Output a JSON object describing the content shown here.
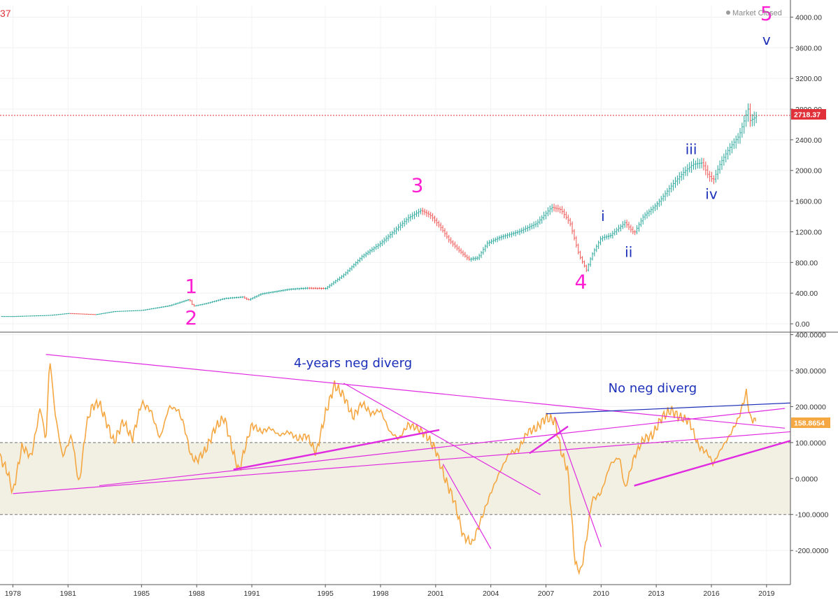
{
  "header": {
    "last_price_partial": "37",
    "status_label": "Market Closed"
  },
  "colors": {
    "up": "#26a69a",
    "down": "#ef5350",
    "oscillator": "#f5a742",
    "trendline_pink": "#e02be0",
    "trendline_blue": "#1c2fb8",
    "band_fill": "#f1f0e3",
    "price_line": "#e0303a",
    "label_pink": "#ff1fd2",
    "label_blue": "#1c2fb8"
  },
  "chart_data": [
    {
      "type": "line",
      "panel": "price",
      "y_scale": "linear",
      "ylim": [
        -100,
        4150
      ],
      "xlim": [
        1977.3,
        2020.3
      ],
      "yticks": [
        "4000.00",
        "3600.00",
        "3200.00",
        "2800.00",
        "2400.00",
        "2000.00",
        "1600.00",
        "1200.00",
        "800.00",
        "400.00",
        "0.00"
      ],
      "last_price": "2718.37",
      "series": [
        {
          "x": [
            1977.3,
            1978.0,
            1980.0,
            1981.0,
            1982.5,
            1983.5,
            1985.0,
            1986.5,
            1987.6,
            1987.8,
            1988.5,
            1989.5,
            1990.5,
            1990.8,
            1991.5,
            1993.0,
            1994.0,
            1995.0,
            1996.0,
            1997.0,
            1998.0,
            1998.7,
            1999.5,
            2000.2,
            2000.7,
            2001.3,
            2001.7,
            2002.3,
            2002.8,
            2003.3,
            2003.8,
            2004.5,
            2005.5,
            2006.5,
            2007.3,
            2007.8,
            2008.3,
            2008.8,
            2009.2,
            2009.5,
            2010.0,
            2010.5,
            2011.3,
            2011.8,
            2012.3,
            2013.0,
            2013.5,
            2014.0,
            2014.5,
            2015.0,
            2015.5,
            2015.8,
            2016.1,
            2016.5,
            2017.0,
            2017.5,
            2018.0,
            2018.1,
            2018.3,
            2018.5
          ],
          "values": [
            95,
            95,
            110,
            135,
            120,
            160,
            175,
            235,
            320,
            230,
            265,
            330,
            350,
            310,
            390,
            450,
            465,
            460,
            640,
            880,
            1050,
            1200,
            1380,
            1480,
            1420,
            1250,
            1100,
            950,
            840,
            860,
            1050,
            1130,
            1200,
            1310,
            1520,
            1490,
            1320,
            900,
            700,
            900,
            1120,
            1150,
            1320,
            1180,
            1400,
            1550,
            1700,
            1850,
            1980,
            2080,
            2100,
            1950,
            1870,
            2100,
            2300,
            2450,
            2800,
            2650,
            2680,
            2718
          ]
        }
      ],
      "wave_labels": [
        {
          "text": "1",
          "x": 1987.7,
          "y": 400,
          "color": "pink"
        },
        {
          "text": "2",
          "x": 1987.7,
          "y": -10,
          "color": "pink"
        },
        {
          "text": "3",
          "x": 2000.0,
          "y": 1720,
          "color": "pink"
        },
        {
          "text": "4",
          "x": 2008.9,
          "y": 460,
          "color": "pink"
        },
        {
          "text": "5",
          "x": 2019.0,
          "y": 3960,
          "color": "pink"
        },
        {
          "text": "v",
          "x": 2019.0,
          "y": 3640,
          "color": "blue"
        },
        {
          "text": "i",
          "x": 2010.1,
          "y": 1340,
          "color": "blue"
        },
        {
          "text": "ii",
          "x": 2011.5,
          "y": 870,
          "color": "blue"
        },
        {
          "text": "iii",
          "x": 2014.9,
          "y": 2210,
          "color": "blue"
        },
        {
          "text": "iv",
          "x": 2016.0,
          "y": 1630,
          "color": "blue"
        }
      ]
    },
    {
      "type": "line",
      "panel": "oscillator",
      "ylim": [
        -295,
        405
      ],
      "yticks": [
        "400.0000",
        "300.0000",
        "200.0000",
        "100.0000",
        "0.0000",
        "-100.0000",
        "-200.0000"
      ],
      "band": [
        -100,
        100
      ],
      "last_value": "158.8654",
      "xtick_labels": [
        "1978",
        "1981",
        "1985",
        "1988",
        "1991",
        "1995",
        "1998",
        "2001",
        "2004",
        "2007",
        "2010",
        "2013",
        "2016",
        "2019"
      ],
      "series": [
        {
          "x": [
            1977.3,
            1977.7,
            1978.0,
            1978.5,
            1979.0,
            1979.5,
            1979.8,
            1980.0,
            1980.3,
            1980.7,
            1981.2,
            1981.6,
            1982.0,
            1982.3,
            1982.7,
            1983.0,
            1983.5,
            1984.0,
            1984.5,
            1985.0,
            1985.5,
            1986.0,
            1986.5,
            1987.0,
            1987.3,
            1987.7,
            1988.0,
            1988.5,
            1989.0,
            1989.5,
            1990.0,
            1990.3,
            1990.6,
            1991.0,
            1991.5,
            1992.0,
            1992.5,
            1993.0,
            1993.5,
            1994.0,
            1994.5,
            1995.0,
            1995.5,
            1996.0,
            1996.5,
            1997.0,
            1997.5,
            1998.0,
            1998.5,
            1999.0,
            1999.5,
            2000.0,
            2000.5,
            2001.0,
            2001.5,
            2002.0,
            2002.5,
            2003.0,
            2003.5,
            2004.0,
            2004.5,
            2005.0,
            2005.5,
            2006.0,
            2006.5,
            2007.0,
            2007.5,
            2007.8,
            2008.2,
            2008.6,
            2008.9,
            2009.2,
            2009.5,
            2010.0,
            2010.5,
            2011.0,
            2011.3,
            2011.8,
            2012.3,
            2012.8,
            2013.3,
            2013.8,
            2014.3,
            2014.8,
            2015.3,
            2015.8,
            2016.1,
            2016.5,
            2017.0,
            2017.5,
            2017.9,
            2018.1,
            2018.4
          ],
          "values": [
            60,
            20,
            -40,
            90,
            60,
            200,
            100,
            340,
            180,
            60,
            120,
            -20,
            150,
            200,
            210,
            170,
            100,
            160,
            110,
            210,
            190,
            110,
            200,
            190,
            150,
            60,
            50,
            80,
            140,
            170,
            70,
            20,
            80,
            150,
            130,
            140,
            120,
            130,
            110,
            120,
            70,
            180,
            260,
            230,
            170,
            210,
            180,
            190,
            130,
            110,
            150,
            140,
            120,
            80,
            0,
            -60,
            -160,
            -180,
            -110,
            -40,
            20,
            70,
            80,
            130,
            140,
            170,
            160,
            80,
            20,
            -240,
            -260,
            -170,
            -60,
            -40,
            40,
            60,
            -30,
            60,
            110,
            120,
            170,
            190,
            170,
            160,
            90,
            70,
            40,
            80,
            120,
            170,
            240,
            170,
            159
          ]
        }
      ],
      "annotations": [
        "4-years neg diverg",
        "No neg diverg"
      ],
      "annotation_anchors": [
        {
          "x": 1996.5,
          "y": 310
        },
        {
          "x": 2012.8,
          "y": 240
        }
      ],
      "trendlines": [
        {
          "x1": 1979.8,
          "y1": 345,
          "x2": 2020.0,
          "y2": 140,
          "color": "pink"
        },
        {
          "x1": 1978.0,
          "y1": -42,
          "x2": 2020.3,
          "y2": 130,
          "color": "pink"
        },
        {
          "x1": 1982.7,
          "y1": -20,
          "x2": 2020.0,
          "y2": 195,
          "color": "pink"
        },
        {
          "x1": 1990.0,
          "y1": 25,
          "x2": 2001.2,
          "y2": 135,
          "color": "pink",
          "bold": true
        },
        {
          "x1": 1996.0,
          "y1": 265,
          "x2": 2006.7,
          "y2": -45,
          "color": "pink"
        },
        {
          "x1": 2001.4,
          "y1": 40,
          "x2": 2004.0,
          "y2": -195,
          "color": "pink"
        },
        {
          "x1": 2006.1,
          "y1": 70,
          "x2": 2008.2,
          "y2": 145,
          "color": "pink",
          "bold": true
        },
        {
          "x1": 2007.5,
          "y1": 170,
          "x2": 2010.0,
          "y2": -190,
          "color": "pink"
        },
        {
          "x1": 2011.8,
          "y1": -20,
          "x2": 2020.3,
          "y2": 105,
          "color": "pink",
          "bold": true
        },
        {
          "x1": 2007.0,
          "y1": 180,
          "x2": 2020.3,
          "y2": 210,
          "color": "blue"
        }
      ]
    }
  ]
}
